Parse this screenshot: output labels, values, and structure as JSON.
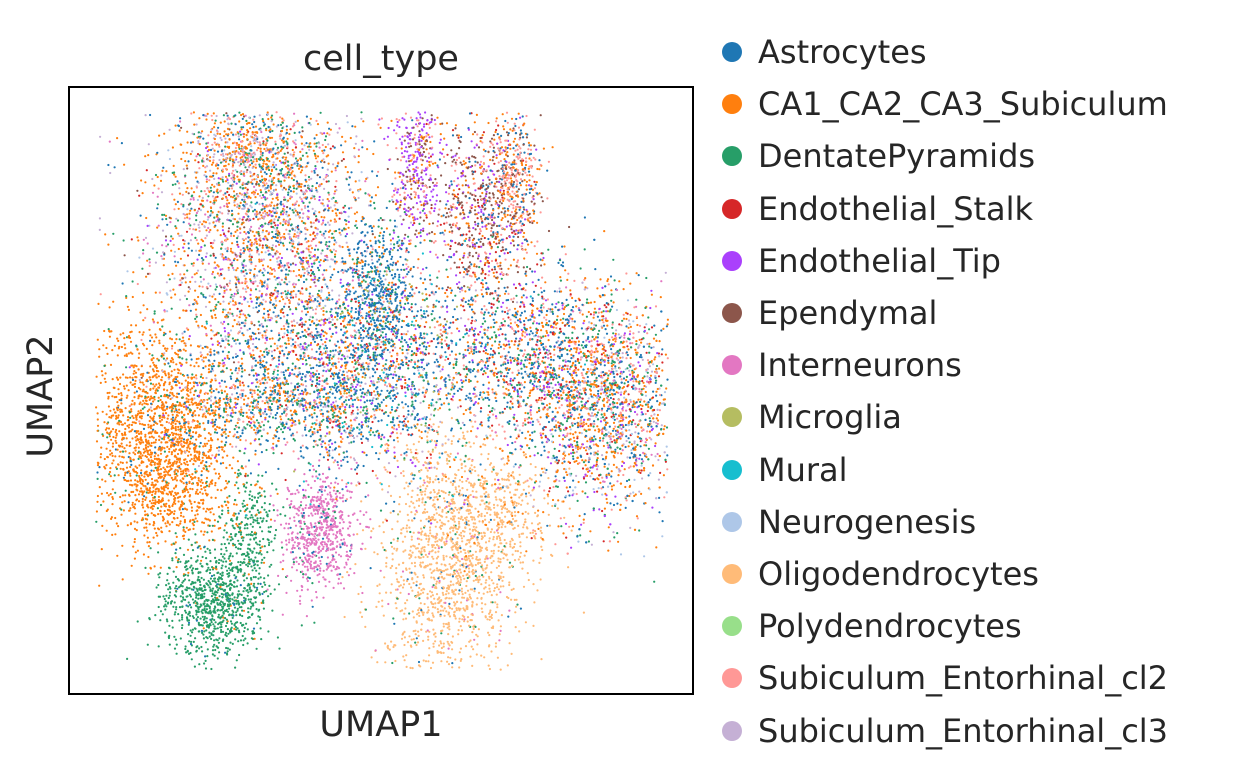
{
  "chart_data": {
    "type": "scatter",
    "title": "cell_type",
    "xlabel": "UMAP1",
    "ylabel": "UMAP2",
    "grid": false,
    "legend_placement": "right",
    "x_ticks": [],
    "y_ticks": [],
    "series": [
      {
        "name": "Astrocytes",
        "color": "#1f77b4"
      },
      {
        "name": "CA1_CA2_CA3_Subiculum",
        "color": "#ff7f0e"
      },
      {
        "name": "DentatePyramids",
        "color": "#279e68"
      },
      {
        "name": "Endothelial_Stalk",
        "color": "#d62728"
      },
      {
        "name": "Endothelial_Tip",
        "color": "#aa40fc"
      },
      {
        "name": "Ependymal",
        "color": "#8c564b"
      },
      {
        "name": "Interneurons",
        "color": "#e377c2"
      },
      {
        "name": "Microglia",
        "color": "#b5bd61"
      },
      {
        "name": "Mural",
        "color": "#17becf"
      },
      {
        "name": "Neurogenesis",
        "color": "#aec7e8"
      },
      {
        "name": "Oligodendrocytes",
        "color": "#ffbb78"
      },
      {
        "name": "Polydendrocytes",
        "color": "#98df8a"
      },
      {
        "name": "Subiculum_Entorhinal_cl2",
        "color": "#ff9896"
      },
      {
        "name": "Subiculum_Entorhinal_cl3",
        "color": "#c5b0d5"
      }
    ]
  }
}
